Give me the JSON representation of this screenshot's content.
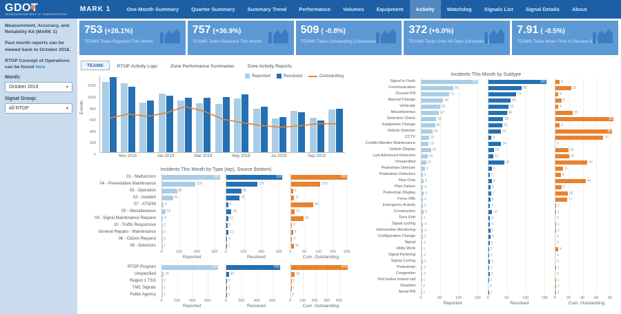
{
  "navbar": {
    "logo": "GDOT",
    "logo_sub": "GEORGIA DEPARTMENT OF TRANSPORTATION",
    "product": "MARK 1",
    "items": [
      {
        "label": "One-Month Summary",
        "active": false
      },
      {
        "label": "Quarter Summary",
        "active": false
      },
      {
        "label": "Summary Trend",
        "active": false
      },
      {
        "label": "Performance",
        "active": false
      },
      {
        "label": "Volumes",
        "active": false
      },
      {
        "label": "Equipment",
        "active": false
      },
      {
        "label": "Activity",
        "active": true
      },
      {
        "label": "Watchdog",
        "active": false
      },
      {
        "label": "Signals List",
        "active": false
      },
      {
        "label": "Signal Details",
        "active": false
      },
      {
        "label": "About",
        "active": false
      }
    ]
  },
  "sidebar": {
    "para1": "Measurement, Accuracy, and Reliability Kit (MARK 1)",
    "para2": "Past month reports can be viewed back to October 2018.",
    "para3_prefix": "RTOP Concept of Operations can be found ",
    "para3_link": "here",
    "month_label": "Month:",
    "month_value": "October 2019",
    "signal_group_label": "Signal Group:",
    "signal_group_value": "All RTOP",
    "caret": "▾"
  },
  "kpi_cards": [
    {
      "value": "753",
      "delta": "(+26.1%)",
      "caption": "TEAMS Tasks Reported This Month"
    },
    {
      "value": "757",
      "delta": "(+36.9%)",
      "caption": "TEAMS Tasks Resolved This Month"
    },
    {
      "value": "509",
      "delta": "( -0.8%)",
      "caption": "TEAMS Tasks Outstanding [Unresolved]"
    },
    {
      "value": "372",
      "delta": "(+6.0%)",
      "caption": "TEAMS Tasks Over 45 Days [Unresolved]"
    },
    {
      "value": "7.91",
      "delta": "( -0.5%)",
      "caption": "TEAMS Tasks Mean Time to Resolve [Days]"
    }
  ],
  "tabs": [
    {
      "label": "TEAMS",
      "active": true
    },
    {
      "label": "RTOP Activity Logs",
      "active": false
    },
    {
      "label": "Zone Performance Summaries",
      "active": false
    },
    {
      "label": "Zone Activity Reports",
      "active": false
    }
  ],
  "colors": {
    "light": "#a9cde6",
    "dark": "#2470b3",
    "orange": "#e8822d",
    "navbar": "#1c5fa5",
    "card": "#5d99d4",
    "card_icon": "#3c7cc2"
  },
  "chart_data": [
    {
      "id": "monthly",
      "type": "bar+line",
      "title": "",
      "xlabel": "",
      "ylabel": "Events",
      "ylim": [
        0,
        1350
      ],
      "yticks": [
        0,
        200,
        400,
        600,
        800,
        1000,
        1200
      ],
      "categories": [
        "Oct 2018",
        "Nov 2018",
        "Dec 2018",
        "Jan 2019",
        "Feb 2019",
        "Mar 2019",
        "Apr 2019",
        "May 2019",
        "Jun 2019",
        "Jul 2019",
        "Aug 2019",
        "Sep 2019",
        "Oct 2019"
      ],
      "xticks_shown": [
        1,
        3,
        5,
        7,
        9,
        11
      ],
      "legend_position": "top-right",
      "series": [
        {
          "name": "Reported",
          "kind": "bar",
          "color": "light",
          "values": [
            1230,
            1210,
            870,
            1030,
            910,
            860,
            840,
            940,
            760,
            590,
            720,
            600,
            750
          ]
        },
        {
          "name": "Resolved",
          "kind": "bar",
          "color": "dark",
          "values": [
            1310,
            1140,
            910,
            990,
            950,
            950,
            970,
            1010,
            800,
            615,
            700,
            550,
            760
          ]
        },
        {
          "name": "Outstanding",
          "kind": "line",
          "color": "orange",
          "values": [
            610,
            680,
            640,
            700,
            810,
            730,
            590,
            530,
            480,
            450,
            470,
            510,
            510
          ]
        }
      ]
    },
    {
      "id": "subtype",
      "type": "bar",
      "orientation": "horizontal",
      "title": "Incidents This Month by Subtype",
      "categories": [
        "Signal in Flash",
        "Communication",
        "Ground PM",
        "Manual Change",
        "Vehicular",
        "Miscellaneous",
        "Detection Check",
        "Equipment Change",
        "Vehicle Detector",
        "CCTV",
        "Conflict Monitor Maintenance",
        "Vehicle Display",
        "Low Advanced Detection",
        "Unspecified",
        "Pedestrian Detector",
        "Pedestrian Detectors",
        "Max Outs",
        "Plan Failure",
        "Pedestrian Display",
        "Force Offs",
        "Emergency Activity",
        "Construction",
        "Time Drift",
        "Signal cycling",
        "Intersection Monitoring",
        "Configuration Change",
        "Signal",
        "Utility Work",
        "Signal Retiming",
        "Signal Cycling",
        "Pedestrian",
        "Congestion",
        "Ped button locked call",
        "Disabled",
        "Aerial PM"
      ],
      "panels": [
        {
          "name": "Reported",
          "color": "light",
          "xmax": 168,
          "xticks": [
            0,
            50,
            100,
            150
          ],
          "values": [
            152,
            85,
            73,
            58,
            50,
            47,
            39,
            36,
            29,
            20,
            19,
            25,
            16,
            12,
            9,
            3,
            5,
            4,
            6,
            4,
            3,
            5,
            2,
            4,
            4,
            3,
            2,
            1,
            2,
            3,
            2,
            2,
            1,
            0,
            1
          ]
        },
        {
          "name": "Resolved",
          "color": "dark",
          "xmax": 168,
          "xticks": [
            0,
            50,
            100,
            150
          ],
          "values": [
            155,
            88,
            73,
            59,
            53,
            49,
            39,
            36,
            33,
            8,
            34,
            14,
            13,
            42,
            9,
            3,
            9,
            5,
            7,
            5,
            4,
            10,
            4,
            4,
            5,
            5,
            3,
            1,
            2,
            4,
            2,
            3,
            1,
            0,
            1
          ]
        },
        {
          "name": "Cum. Outstanding",
          "color": "orange",
          "xmax": 92,
          "xticks": [
            0,
            20,
            40,
            60,
            80
          ],
          "values": [
            6,
            23,
            4,
            9,
            4,
            25,
            85,
            6,
            83,
            70,
            0,
            19,
            20,
            47,
            11,
            8,
            44,
            9,
            18,
            17,
            1,
            1,
            0,
            1,
            1,
            0,
            0,
            4,
            0,
            0,
            1,
            0,
            1,
            1,
            1
          ]
        }
      ]
    },
    {
      "id": "type",
      "type": "bar",
      "orientation": "horizontal",
      "title": "Incidents This Month by Type (top), Source (bottom)",
      "categories": [
        "01 - Malfunction",
        "04 - Preventative Maintenance",
        "03 - Operation",
        "02 - Incident",
        "07 - ATSPM",
        "05 - Miscellaneous",
        "09 - Signal Maintenance Request",
        "10 - Traffic Responsive",
        "General Repairs - Maintenance",
        "06 - Citizen Request",
        "08 - Detectors"
      ],
      "panels": [
        {
          "name": "Reported",
          "color": "light",
          "xmax": 345,
          "xticks": [
            0,
            100,
            200,
            300
          ],
          "values": [
            330,
            190,
            85,
            62,
            9,
            18,
            5,
            2,
            2,
            2,
            1
          ]
        },
        {
          "name": "Resolved",
          "color": "dark",
          "xmax": 345,
          "xticks": [
            0,
            100,
            200,
            300
          ],
          "values": [
            320,
            175,
            85,
            75,
            9,
            28,
            11,
            5,
            12,
            4,
            1
          ]
        },
        {
          "name": "Cum. Outstanding",
          "color": "orange",
          "xmax": 215,
          "xticks": [
            0,
            50,
            100,
            150,
            200
          ],
          "values": [
            200,
            105,
            8,
            11,
            80,
            13,
            45,
            3,
            8,
            4,
            10
          ]
        }
      ]
    },
    {
      "id": "source",
      "type": "bar",
      "orientation": "horizontal",
      "title": "",
      "categories": [
        "RTOP Program",
        "Unspecified",
        "Region 1 TSO",
        "TMC Signals",
        "Public Agency"
      ],
      "panels": [
        {
          "name": "Reported",
          "color": "light",
          "xmax": 790,
          "xticks": [
            0,
            200,
            400,
            600
          ],
          "values": [
            730,
            20,
            2,
            1,
            1
          ]
        },
        {
          "name": "Resolved",
          "color": "dark",
          "xmax": 790,
          "xticks": [
            0,
            200,
            400,
            600
          ],
          "values": [
            700,
            30,
            2,
            1,
            1
          ]
        },
        {
          "name": "Cum. Outstanding",
          "color": "orange",
          "xmax": 500,
          "xticks": [
            0,
            100,
            200,
            300,
            400
          ],
          "values": [
            470,
            30,
            3,
            1,
            0
          ]
        }
      ]
    }
  ]
}
